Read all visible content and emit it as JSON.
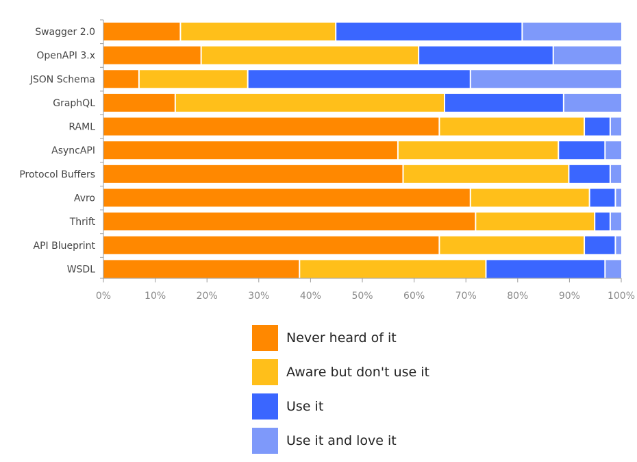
{
  "chart_data": {
    "type": "bar",
    "orientation": "horizontal",
    "stacked": true,
    "title": "",
    "xlabel": "",
    "ylabel": "",
    "xlim": [
      0,
      100
    ],
    "x_ticks": [
      "0%",
      "10%",
      "20%",
      "30%",
      "40%",
      "50%",
      "60%",
      "70%",
      "80%",
      "90%",
      "100%"
    ],
    "categories": [
      "Swagger 2.0",
      "OpenAPI 3.x",
      "JSON Schema",
      "GraphQL",
      "RAML",
      "AsyncAPI",
      "Protocol Buffers",
      "Avro",
      "Thrift",
      "API Blueprint",
      "WSDL"
    ],
    "series": [
      {
        "name": "Never heard of it",
        "color": "#FF8800",
        "values": [
          15,
          19,
          7,
          14,
          65,
          57,
          58,
          71,
          72,
          65,
          38
        ]
      },
      {
        "name": "Aware but don't use it",
        "color": "#FFBF1A",
        "values": [
          30,
          42,
          21,
          52,
          28,
          31,
          32,
          23,
          23,
          28,
          36
        ]
      },
      {
        "name": "Use it",
        "color": "#3A66FF",
        "values": [
          36,
          26,
          43,
          23,
          5,
          9,
          8,
          5,
          3,
          6,
          23
        ]
      },
      {
        "name": "Use it and love it",
        "color": "#7E99FA",
        "values": [
          19,
          13,
          29,
          11,
          2,
          3,
          2,
          1,
          2,
          1,
          3
        ]
      }
    ],
    "grid": false,
    "legend_position": "bottom"
  }
}
